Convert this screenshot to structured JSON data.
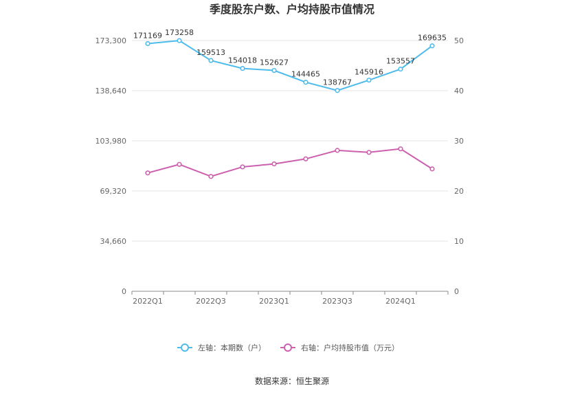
{
  "chart_data": {
    "type": "line",
    "title": "季度股东户数、户均持股市值情况",
    "categories": [
      "2022Q1",
      "2022Q2",
      "2022Q3",
      "2022Q4",
      "2023Q1",
      "2023Q2",
      "2023Q3",
      "2023Q4",
      "2024Q1",
      "2024Q2"
    ],
    "x_tick_labels": [
      "2022Q1",
      "2022Q3",
      "2023Q1",
      "2023Q3",
      "2024Q1"
    ],
    "y_left": {
      "ticks": [
        "0",
        "34,660",
        "69,320",
        "103,980",
        "138,640",
        "173,300"
      ],
      "ylim": [
        0,
        173300
      ]
    },
    "y_right": {
      "ticks": [
        "0",
        "10",
        "20",
        "30",
        "40",
        "50"
      ],
      "ylim": [
        0,
        50
      ]
    },
    "series": [
      {
        "name": "左轴：本期数（户）",
        "axis": "left",
        "color": "#4dbbeb",
        "values": [
          171169,
          173258,
          159513,
          154018,
          152627,
          144465,
          138767,
          145916,
          153557,
          169635
        ],
        "data_labels": [
          "171169",
          "173258",
          "159513",
          "154018",
          "152627",
          "144465",
          "138767",
          "145916",
          "153557",
          "169635"
        ]
      },
      {
        "name": "右轴：户均持股市值（万元）",
        "axis": "right",
        "color": "#cc5fae",
        "values": [
          23.6,
          25.3,
          22.9,
          24.8,
          25.4,
          26.4,
          28.1,
          27.7,
          28.4,
          24.4
        ]
      }
    ],
    "legend_position": "bottom",
    "grid": true
  },
  "footer": {
    "source": "数据来源：恒生聚源"
  }
}
